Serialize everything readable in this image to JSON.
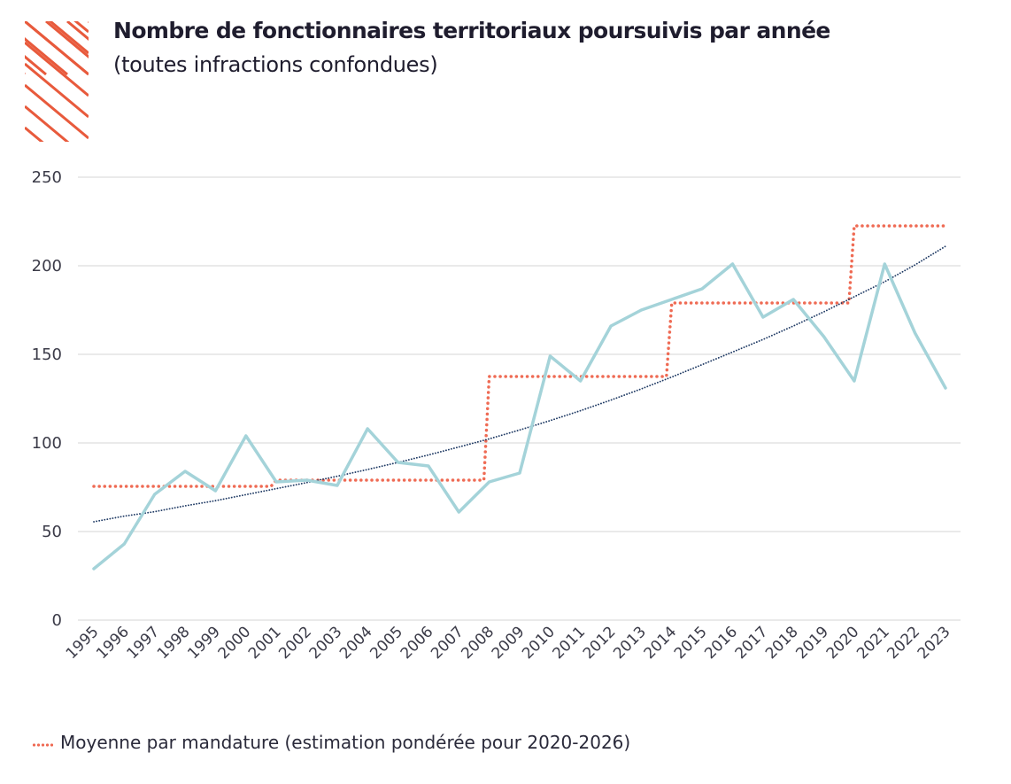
{
  "title": "Nombre de fonctionnaires territoriaux poursuivis par année",
  "subtitle": "(toutes infractions confondues)",
  "legend": {
    "label": "Moyenne par mandature (estimation pondérée pour 2020-2026)"
  },
  "colors": {
    "series": "#a4d3d9",
    "average": "#ef6b54",
    "trend": "#1f3a64",
    "decoration": "#e85a3c",
    "grid": "#d6d6d6"
  },
  "chart_data": {
    "type": "line",
    "title": "Nombre de fonctionnaires territoriaux poursuivis par année",
    "subtitle": "(toutes infractions confondues)",
    "xlabel": "",
    "ylabel": "",
    "ylim": [
      0,
      250
    ],
    "yticks": [
      0,
      50,
      100,
      150,
      200,
      250
    ],
    "grid": true,
    "legend_position": "bottom-left",
    "x": [
      "1995",
      "1996",
      "1997",
      "1998",
      "1999",
      "2000",
      "2001",
      "2002",
      "2003",
      "2004",
      "2005",
      "2006",
      "2007",
      "2008",
      "2009",
      "2010",
      "2011",
      "2012",
      "2013",
      "2014",
      "2015",
      "2016",
      "2017",
      "2018",
      "2019",
      "2020",
      "2021",
      "2022",
      "2023"
    ],
    "series": [
      {
        "style": "solid",
        "values": [
          29,
          43,
          71,
          84,
          73,
          104,
          78,
          79,
          76,
          108,
          89,
          87,
          61,
          78,
          83,
          149,
          135,
          166,
          175,
          181,
          187,
          201,
          171,
          181,
          160,
          135,
          201,
          162,
          131
        ]
      },
      {
        "name": "Moyenne par mandature (estimation pondérée pour 2020-2026)",
        "style": "dotted",
        "values": [
          75.5,
          75.5,
          75.5,
          75.5,
          75.5,
          75.5,
          79,
          79,
          79,
          79,
          79,
          79,
          79,
          137.5,
          137.5,
          137.5,
          137.5,
          137.5,
          137.5,
          179,
          179,
          179,
          179,
          179,
          179,
          222.5,
          222.5,
          222.5,
          222.5
        ]
      },
      {
        "style": "dotted-trend",
        "values": [
          55.5,
          58.7,
          61.2,
          64.5,
          67.4,
          70.8,
          74.2,
          77.6,
          81.2,
          85.0,
          89.0,
          93.2,
          97.7,
          102.3,
          107.3,
          112.6,
          118.2,
          124.2,
          130.5,
          137.2,
          144.2,
          151.3,
          158.4,
          166.0,
          174.0,
          182.5,
          191.0,
          200.5,
          211.0
        ]
      }
    ]
  }
}
